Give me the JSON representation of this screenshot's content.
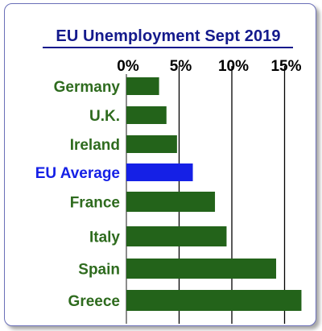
{
  "colors": {
    "bar": "#23631a",
    "highlight": "#1520e6",
    "label": "#2e6b1e",
    "highlight_label": "#1520e6",
    "title": "#141a8c",
    "frame": "#6a6fb8"
  },
  "chart_data": {
    "type": "bar",
    "orientation": "horizontal",
    "title": "EU Unemployment Sept 2019",
    "xlabel": "",
    "ylabel": "",
    "categories": [
      "Germany",
      "U.K.",
      "Ireland",
      "EU Average",
      "France",
      "Italy",
      "Spain",
      "Greece"
    ],
    "values": [
      3.1,
      3.8,
      4.8,
      6.3,
      8.4,
      9.5,
      14.2,
      16.6
    ],
    "highlight_category": "EU Average",
    "xlim": [
      0,
      16.6
    ],
    "xticks": [
      "0%",
      "5%",
      "10%",
      "15%"
    ],
    "xtick_values": [
      0,
      5,
      10,
      15
    ],
    "tick_position": "top",
    "grid": true,
    "legend": "none"
  }
}
